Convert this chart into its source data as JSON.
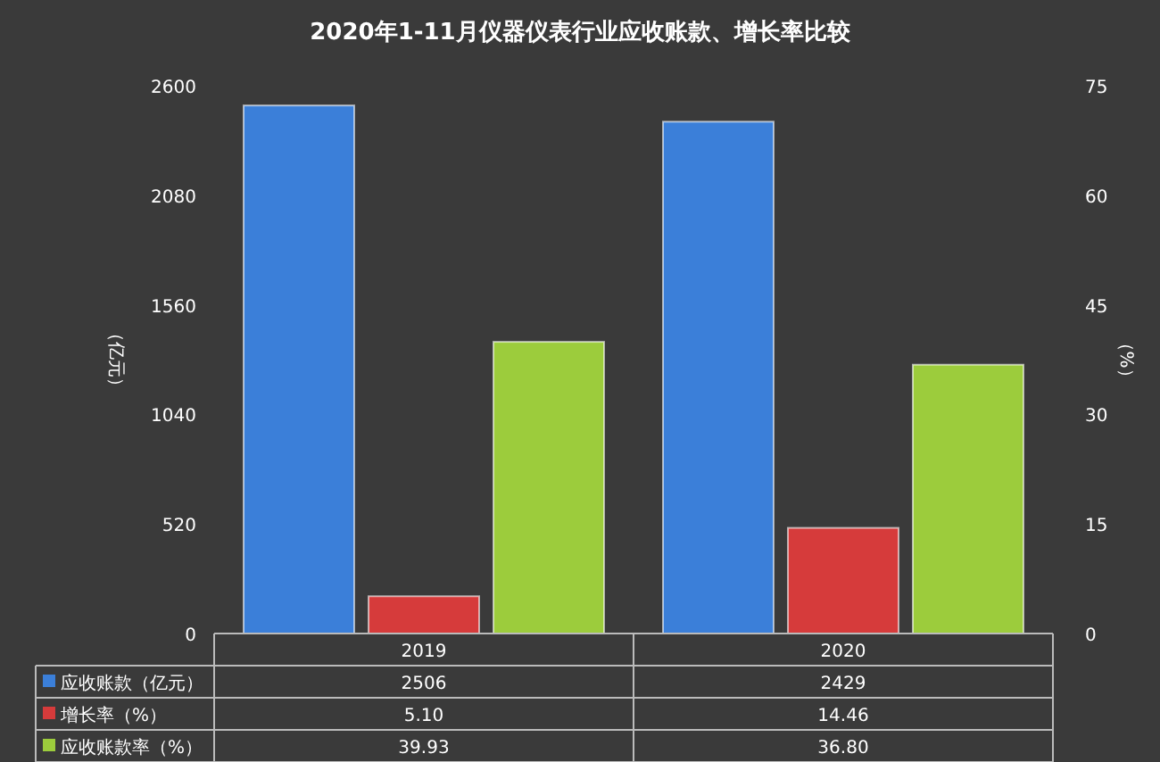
{
  "chart_data": {
    "type": "bar",
    "title": "2020年1-11月仪器仪表行业应收账款、增长率比较",
    "categories": [
      "2019",
      "2020"
    ],
    "ylabel": "（亿元）",
    "y2label": "（%）",
    "ylim": [
      0,
      2600
    ],
    "yticks": [
      0,
      520,
      1040,
      1560,
      2080,
      2600
    ],
    "y2lim": [
      0,
      75
    ],
    "y2ticks": [
      0,
      15,
      30,
      45,
      60,
      75
    ],
    "legend": "bottom",
    "series": [
      {
        "name": "应收账款（亿元）",
        "color": "#3b7fd9",
        "values": [
          2506,
          2429
        ],
        "value_labels": [
          "2506",
          "2429"
        ]
      },
      {
        "name": "增长率（%）",
        "color": "#d63b3b",
        "values": [
          5.1,
          14.46
        ],
        "axis": "y2",
        "value_labels": [
          "5.10",
          "14.46"
        ]
      },
      {
        "name": "应收账款率（%）",
        "color": "#9ccc3c",
        "values": [
          39.93,
          36.8
        ],
        "axis": "y2",
        "value_labels": [
          "39.93",
          "36.80"
        ]
      }
    ]
  }
}
